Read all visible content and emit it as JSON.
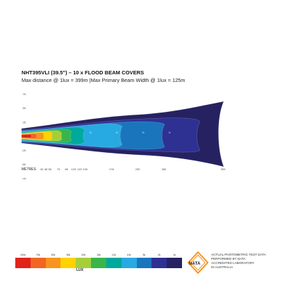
{
  "chart_data": {
    "type": "heatmap",
    "title": "NHT395VLI (39.5\") – 10 x FLOOD BEAM COVERS",
    "subtitle": "Max distance @ 1lux = 399m  |Max Primary  Beam Width @ 1lux = 125m",
    "xlabel": "METRES",
    "x_ticks": [
      40,
      48,
      56,
      73,
      89,
      103,
      115,
      126,
      178,
      230,
      282,
      399
    ],
    "y_ticks": [
      75,
      50,
      25,
      0,
      -25,
      -50,
      -75
    ],
    "xlim": [
      0,
      399
    ],
    "ylim": [
      -75,
      75
    ],
    "contour_labels": [
      {
        "text": "1k",
        "x": 126
      },
      {
        "text": "4k",
        "x": 178
      },
      {
        "text": "2k",
        "x": 230
      },
      {
        "text": "1k",
        "x": 282
      }
    ],
    "max_distance_1lux_m": 399,
    "max_beam_width_1lux_m": 125
  },
  "legend": {
    "labels": [
      "100k",
      "70k",
      "50k",
      "30k",
      "20k",
      "15k",
      "12k",
      "10k",
      "5k",
      "2k",
      "1k"
    ],
    "colors": [
      "#e2231a",
      "#f26522",
      "#f7941d",
      "#ffd200",
      "#a6ce39",
      "#39b54a",
      "#00a99d",
      "#27aae1",
      "#1b75bc",
      "#2e3192",
      "#262262"
    ],
    "title": "LUX"
  },
  "nata": {
    "badge_text": "NATA",
    "lines": [
      "ACTUAL PHOTOMETRIC TEST DATA",
      "PERFORMED BY NATA",
      "ACCREDITED LABORATORY",
      "IN AUSTRALIA"
    ]
  }
}
